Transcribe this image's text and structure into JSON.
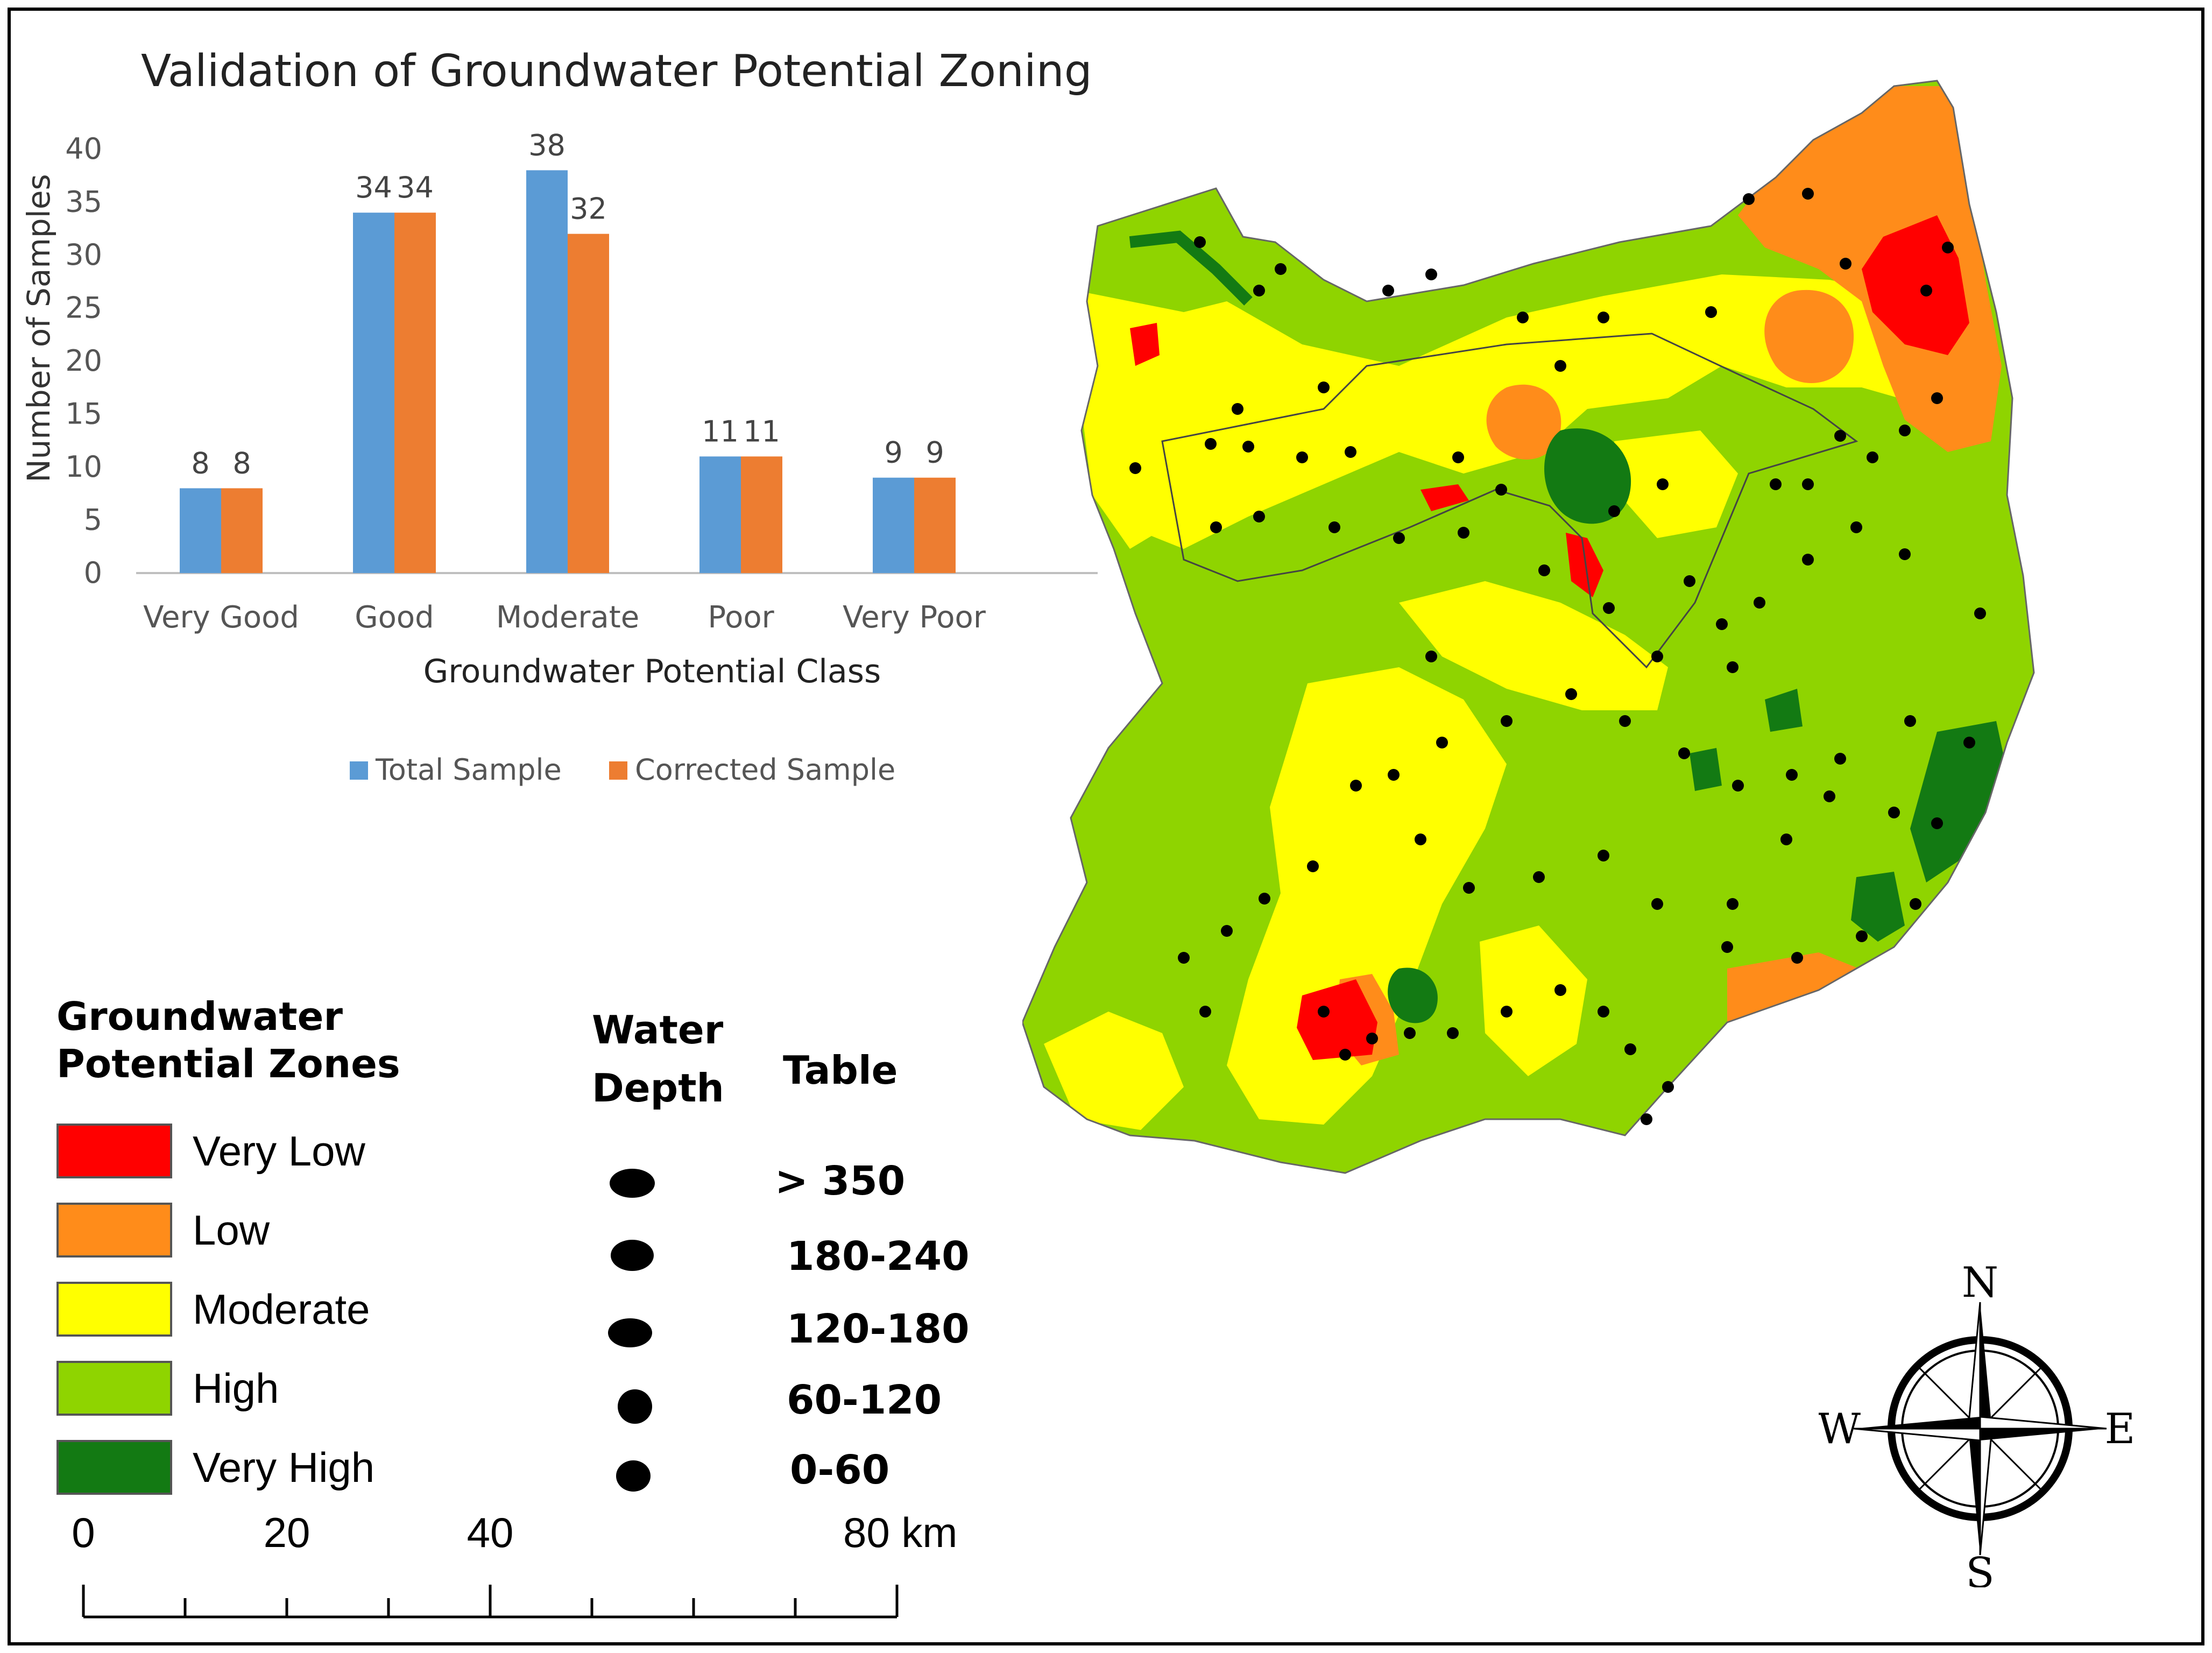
{
  "chart_data": {
    "type": "bar",
    "title": "Validation of Groundwater Potential Zoning",
    "xlabel": "Groundwater Potential Class",
    "ylabel": "Number of Samples",
    "categories": [
      "Very Good",
      "Good",
      "Moderate",
      "Poor",
      "Very Poor"
    ],
    "series": [
      {
        "name": "Total Sample",
        "values": [
          8,
          34,
          38,
          11,
          9
        ],
        "color": "#5B9BD5"
      },
      {
        "name": "Corrected Sample",
        "values": [
          8,
          34,
          32,
          11,
          9
        ],
        "color": "#ED7D31"
      }
    ],
    "ylim": [
      0,
      40
    ],
    "yticks": [
      0,
      5,
      10,
      15,
      20,
      25,
      30,
      35,
      40
    ],
    "legend_position": "bottom",
    "grid": false
  },
  "legend": {
    "title": "Groundwater Potential Zones",
    "items": [
      {
        "label": "Very Low",
        "color": "#FF0000"
      },
      {
        "label": "Low",
        "color": "#FF8C1A"
      },
      {
        "label": "Moderate",
        "color": "#FFFF00"
      },
      {
        "label": "High",
        "color": "#8FD400"
      },
      {
        "label": "Very High",
        "color": "#137A13"
      }
    ]
  },
  "water_depth": {
    "title_line1": "Water",
    "title_line2": "Depth",
    "title_line3": "Table",
    "classes": [
      "> 350",
      "180-240",
      "120-180",
      "60-120",
      "0-60"
    ]
  },
  "scale": {
    "labels": [
      "0",
      "20",
      "40",
      "80 km"
    ]
  },
  "compass": {
    "n": "N",
    "s": "S",
    "e": "E",
    "w": "W"
  },
  "map": {
    "colors": {
      "very_low": "#FF0000",
      "low": "#FF8C1A",
      "moderate": "#FFFF00",
      "high": "#8FD400",
      "very_high": "#137A13",
      "dot": "#000000"
    }
  }
}
